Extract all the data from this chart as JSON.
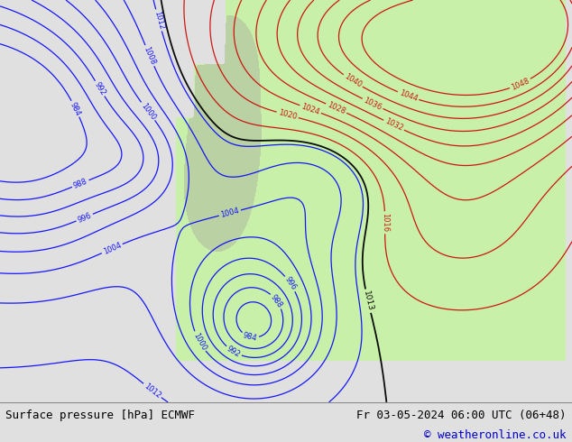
{
  "title_left": "Surface pressure [hPa] ECMWF",
  "title_right": "Fr 03-05-2024 06:00 UTC (06+48)",
  "copyright": "© weatheronline.co.uk",
  "bg_color": "#e0e0e0",
  "land_color": "#c8f0a8",
  "ocean_color": "#dcdcdc",
  "fig_width": 6.34,
  "fig_height": 4.9,
  "dpi": 100,
  "bottom_bar_color": "#ffffff",
  "title_font_size": 9.0,
  "copyright_font_size": 9.0,
  "copyright_color": "#0000cc",
  "blue_levels": [
    984,
    988,
    992,
    996,
    1000,
    1004,
    1008,
    1012
  ],
  "black_levels": [
    1013
  ],
  "red_levels": [
    1016,
    1020,
    1024,
    1028,
    1032,
    1036,
    1040,
    1044,
    1048
  ],
  "blue_color": "#0000ff",
  "red_color": "#cc0000",
  "black_color": "#000000"
}
